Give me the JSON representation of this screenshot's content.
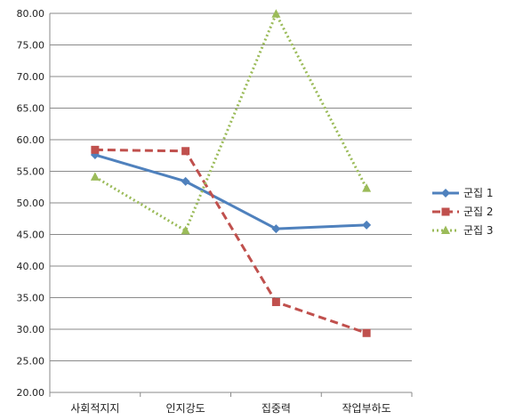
{
  "chart_data": {
    "type": "line",
    "title": "",
    "xlabel": "",
    "ylabel": "",
    "categories": [
      "사회적지지",
      "인지강도",
      "집중력",
      "작업부하도"
    ],
    "ylim": [
      20,
      80
    ],
    "yticks": [
      "20.00",
      "25.00",
      "30.00",
      "35.00",
      "40.00",
      "45.00",
      "50.00",
      "55.00",
      "60.00",
      "65.00",
      "70.00",
      "75.00",
      "80.00"
    ],
    "grid": true,
    "legend_position": "right",
    "series": [
      {
        "name": "군집 1",
        "values": [
          57.6,
          53.4,
          45.9,
          46.5
        ],
        "color": "#4f81bd",
        "line_style": "solid",
        "marker": "diamond"
      },
      {
        "name": "군집 2",
        "values": [
          58.4,
          58.2,
          34.3,
          29.4
        ],
        "color": "#c0504d",
        "line_style": "dashed",
        "marker": "square"
      },
      {
        "name": "군집 3",
        "values": [
          54.1,
          45.6,
          79.9,
          52.3
        ],
        "color": "#9bbb59",
        "line_style": "dotted",
        "marker": "triangle"
      }
    ]
  }
}
